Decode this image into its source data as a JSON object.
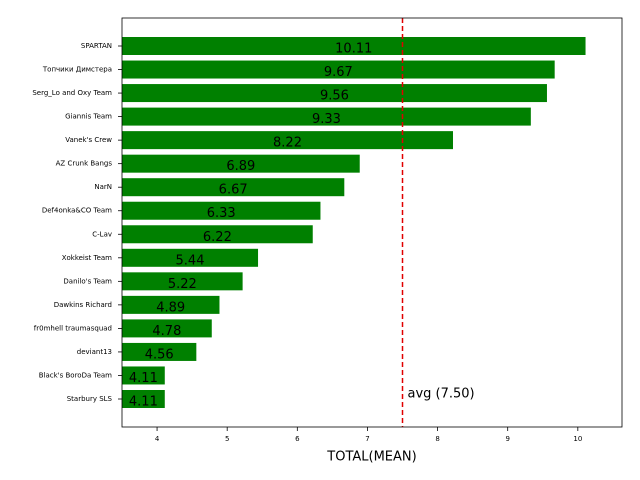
{
  "chart_data": {
    "type": "barh",
    "xlabel": "TOTAL(MEAN)",
    "categories": [
      "SPARTAN",
      "Топчики Димстера",
      "Serg_Lo and Oxy Team",
      "Giannis Team",
      "Vanek's Crew",
      "AZ Crunk Bangs",
      "NarN",
      "Def4onka&CO Team",
      "C-Lav",
      "Xokkeist Team",
      "Danilo's Team",
      "Dawkins Richard",
      "fr0mhell traumasquad",
      "deviant13",
      "Black's BoroDa Team",
      "Starbury SLS"
    ],
    "values": [
      10.11,
      9.67,
      9.56,
      9.33,
      8.22,
      6.89,
      6.67,
      6.33,
      6.22,
      5.44,
      5.22,
      4.89,
      4.78,
      4.56,
      4.11,
      4.11
    ],
    "color": "#008000",
    "xlim": [
      3.5,
      10.63
    ],
    "xticks": [
      4,
      5,
      6,
      7,
      8,
      9,
      10
    ],
    "avg_line": {
      "value": 7.5,
      "label": "avg (7.50)",
      "color": "#e00000"
    }
  }
}
